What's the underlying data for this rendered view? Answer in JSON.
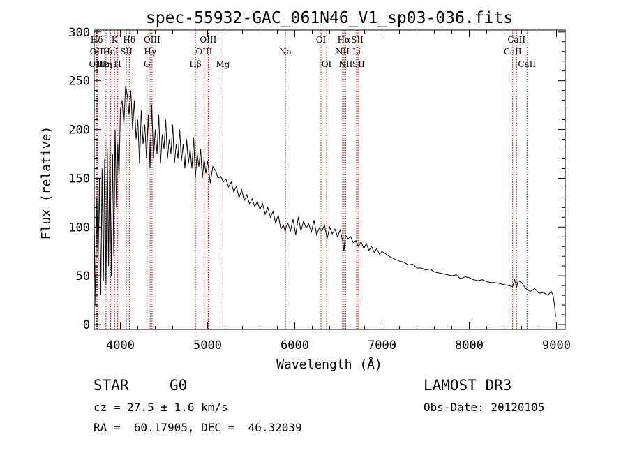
{
  "chart_data": {
    "type": "line",
    "title": "spec-55932-GAC_061N46_V1_sp03-036.fits",
    "xlabel": "Wavelength (Å)",
    "ylabel": "Flux (relative)",
    "xlim": [
      3700,
      9100
    ],
    "ylim": [
      -5,
      302
    ],
    "xticks": [
      4000,
      5000,
      6000,
      7000,
      8000,
      9000
    ],
    "yticks": [
      0,
      50,
      100,
      150,
      200,
      250,
      300
    ],
    "series": [
      {
        "name": "flux",
        "x": [
          3700,
          3715,
          3730,
          3745,
          3760,
          3775,
          3790,
          3805,
          3820,
          3835,
          3850,
          3865,
          3880,
          3895,
          3910,
          3925,
          3940,
          3955,
          3970,
          3985,
          4000,
          4020,
          4040,
          4060,
          4080,
          4100,
          4120,
          4140,
          4160,
          4180,
          4200,
          4220,
          4240,
          4260,
          4280,
          4300,
          4320,
          4340,
          4360,
          4380,
          4400,
          4420,
          4440,
          4460,
          4480,
          4500,
          4520,
          4540,
          4560,
          4580,
          4600,
          4620,
          4640,
          4660,
          4680,
          4700,
          4720,
          4740,
          4760,
          4780,
          4800,
          4820,
          4840,
          4860,
          4880,
          4900,
          4920,
          4940,
          4960,
          4980,
          5000,
          5030,
          5060,
          5090,
          5120,
          5150,
          5180,
          5210,
          5240,
          5270,
          5300,
          5330,
          5360,
          5390,
          5420,
          5450,
          5480,
          5510,
          5540,
          5570,
          5600,
          5630,
          5660,
          5690,
          5720,
          5750,
          5780,
          5810,
          5840,
          5870,
          5890,
          5900,
          5920,
          5950,
          5980,
          6010,
          6040,
          6070,
          6100,
          6130,
          6160,
          6190,
          6220,
          6250,
          6280,
          6310,
          6340,
          6370,
          6400,
          6430,
          6460,
          6490,
          6520,
          6550,
          6563,
          6580,
          6610,
          6640,
          6670,
          6700,
          6730,
          6760,
          6790,
          6820,
          6850,
          6880,
          6910,
          6940,
          6970,
          7000,
          7050,
          7100,
          7150,
          7200,
          7250,
          7300,
          7350,
          7400,
          7450,
          7500,
          7550,
          7600,
          7650,
          7700,
          7750,
          7800,
          7850,
          7900,
          7950,
          8000,
          8050,
          8100,
          8150,
          8200,
          8250,
          8300,
          8350,
          8400,
          8450,
          8498,
          8520,
          8542,
          8560,
          8600,
          8640,
          8662,
          8700,
          8750,
          8800,
          8850,
          8900,
          8940,
          8960,
          8975,
          8990
        ],
        "values": [
          100,
          20,
          130,
          60,
          150,
          30,
          160,
          45,
          170,
          40,
          180,
          60,
          190,
          50,
          175,
          70,
          200,
          120,
          185,
          150,
          220,
          230,
          205,
          245,
          235,
          215,
          240,
          200,
          230,
          190,
          210,
          165,
          220,
          185,
          205,
          170,
          215,
          160,
          225,
          170,
          200,
          175,
          215,
          165,
          195,
          180,
          210,
          170,
          190,
          175,
          205,
          165,
          185,
          170,
          200,
          168,
          185,
          160,
          190,
          165,
          180,
          160,
          192,
          150,
          175,
          162,
          180,
          150,
          170,
          155,
          168,
          145,
          162,
          158,
          150,
          152,
          146,
          149,
          141,
          146,
          136,
          142,
          130,
          138,
          127,
          133,
          124,
          129,
          121,
          126,
          118,
          124,
          113,
          120,
          110,
          116,
          104,
          112,
          98,
          102,
          95,
          100,
          104,
          96,
          108,
          92,
          110,
          96,
          106,
          99,
          103,
          95,
          107,
          92,
          99,
          96,
          102,
          88,
          100,
          93,
          98,
          90,
          97,
          85,
          75,
          92,
          88,
          90,
          84,
          86,
          80,
          85,
          78,
          83,
          76,
          80,
          74,
          78,
          72,
          75,
          72,
          69,
          67,
          65,
          64,
          61,
          62,
          58,
          58,
          56,
          57,
          54,
          53,
          52,
          51,
          50,
          51,
          47,
          49,
          48,
          46,
          45,
          46,
          44,
          43,
          43,
          42,
          41,
          40,
          39,
          46,
          38,
          45,
          43,
          38,
          36,
          34,
          37,
          32,
          33,
          30,
          34,
          30,
          22,
          8
        ]
      }
    ],
    "lines": [
      {
        "name": "Hδ",
        "x": 3729,
        "row": 0
      },
      {
        "name": "OII",
        "x": 3727,
        "row": 1
      },
      {
        "name": "OIII",
        "x": 3736,
        "row": 2
      },
      {
        "name": "Hε",
        "x": 3800,
        "row": 2
      },
      {
        "name": "Hη",
        "x": 3835,
        "row": 2
      },
      {
        "name": "HeI",
        "x": 3889,
        "row": 1
      },
      {
        "name": "K",
        "x": 3934,
        "row": 0
      },
      {
        "name": "H",
        "x": 3969,
        "row": 2
      },
      {
        "name": "SII",
        "x": 4069,
        "row": 1
      },
      {
        "name": "Hδ",
        "x": 4102,
        "row": 0
      },
      {
        "name": "OIII",
        "x": 4363,
        "row": 0
      },
      {
        "name": "Hγ",
        "x": 4341,
        "row": 1
      },
      {
        "name": "G",
        "x": 4305,
        "row": 2
      },
      {
        "name": "Hβ",
        "x": 4861,
        "row": 2
      },
      {
        "name": "OIII",
        "x": 4959,
        "row": 1
      },
      {
        "name": "OIII",
        "x": 5007,
        "row": 0
      },
      {
        "name": "Mg",
        "x": 5175,
        "row": 2
      },
      {
        "name": "Na",
        "x": 5893,
        "row": 1
      },
      {
        "name": "OI",
        "x": 6300,
        "row": 0
      },
      {
        "name": "OI",
        "x": 6364,
        "row": 2
      },
      {
        "name": "Hα",
        "x": 6563,
        "row": 0
      },
      {
        "name": "NII",
        "x": 6548,
        "row": 1
      },
      {
        "name": "NII",
        "x": 6583,
        "row": 2
      },
      {
        "name": "SII",
        "x": 6716,
        "row": 0
      },
      {
        "name": "Li",
        "x": 6708,
        "row": 1
      },
      {
        "name": "SII",
        "x": 6731,
        "row": 2
      },
      {
        "name": "CaII",
        "x": 8498,
        "row": 1
      },
      {
        "name": "CaII",
        "x": 8542,
        "row": 0
      },
      {
        "name": "CaII",
        "x": 8662,
        "row": 2
      }
    ]
  },
  "info": {
    "object_type": "STAR",
    "subclass": "G0",
    "survey": "LAMOST DR3",
    "cz": "cz = 27.5 ± 1.6 km/s",
    "obs_date": "Obs-Date: 20120105",
    "coords": "RA =  60.17905, DEC =  46.32039"
  }
}
